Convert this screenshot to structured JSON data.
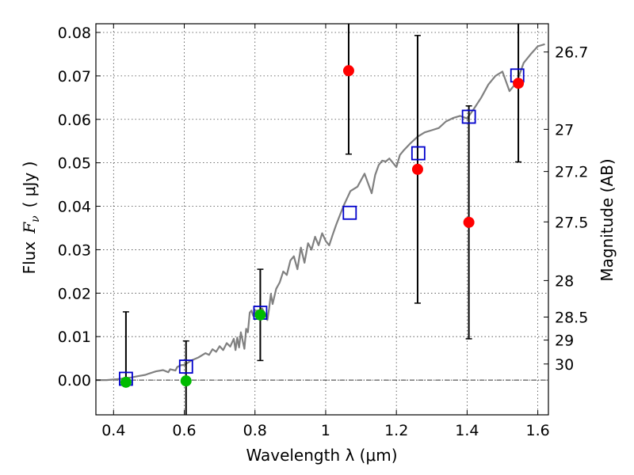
{
  "chart_data": {
    "type": "scatter",
    "xlabel": "Wavelength  λ (μm)",
    "ylabel": "Flux  Fν  ( μJy )",
    "ylabel_parts": {
      "prefix": "Flux",
      "symbol": "F",
      "subscript": "ν",
      "unit": "( μJy )"
    },
    "ylabel_right": "Magnitude (AB)",
    "xlim": [
      0.35,
      1.63
    ],
    "ylim": [
      -0.008,
      0.082
    ],
    "x_ticks": [
      {
        "value": 0.4,
        "label": "0.4"
      },
      {
        "value": 0.6,
        "label": "0.6"
      },
      {
        "value": 0.8,
        "label": "0.8"
      },
      {
        "value": 1.0,
        "label": "1"
      },
      {
        "value": 1.2,
        "label": "1.2"
      },
      {
        "value": 1.4,
        "label": "1.4"
      },
      {
        "value": 1.6,
        "label": "1.6"
      }
    ],
    "y_ticks": [
      {
        "value": 0.0,
        "label": "0.00"
      },
      {
        "value": 0.01,
        "label": "0.01"
      },
      {
        "value": 0.02,
        "label": "0.02"
      },
      {
        "value": 0.03,
        "label": "0.03"
      },
      {
        "value": 0.04,
        "label": "0.04"
      },
      {
        "value": 0.05,
        "label": "0.05"
      },
      {
        "value": 0.06,
        "label": "0.06"
      },
      {
        "value": 0.07,
        "label": "0.07"
      },
      {
        "value": 0.08,
        "label": "0.08"
      }
    ],
    "mag_ticks": [
      {
        "flux": 0.0755,
        "label": "26.7"
      },
      {
        "flux": 0.0577,
        "label": "27"
      },
      {
        "flux": 0.048,
        "label": "27.2"
      },
      {
        "flux": 0.0364,
        "label": "27.5"
      },
      {
        "flux": 0.0229,
        "label": "28"
      },
      {
        "flux": 0.0145,
        "label": "28.5"
      },
      {
        "flux": 0.0092,
        "label": "29"
      },
      {
        "flux": 0.0037,
        "label": "30"
      }
    ],
    "grid": true,
    "zero_line": true,
    "colors": {
      "model": "#808080",
      "detection": "#00bb00",
      "photometry": "#ff0000",
      "model_photometry": "#0000cc",
      "errorbar": "#000000"
    },
    "series": [
      {
        "name": "model spectrum",
        "kind": "line",
        "x": [
          0.35,
          0.38,
          0.41,
          0.43,
          0.45,
          0.47,
          0.49,
          0.5,
          0.52,
          0.54,
          0.555,
          0.56,
          0.575,
          0.58,
          0.59,
          0.6,
          0.62,
          0.64,
          0.66,
          0.67,
          0.68,
          0.69,
          0.7,
          0.71,
          0.72,
          0.73,
          0.74,
          0.745,
          0.75,
          0.755,
          0.76,
          0.77,
          0.775,
          0.78,
          0.785,
          0.79,
          0.795,
          0.8,
          0.81,
          0.82,
          0.83,
          0.835,
          0.84,
          0.845,
          0.85,
          0.86,
          0.87,
          0.88,
          0.89,
          0.9,
          0.91,
          0.92,
          0.93,
          0.94,
          0.95,
          0.96,
          0.97,
          0.98,
          0.99,
          1.0,
          1.01,
          1.02,
          1.03,
          1.05,
          1.07,
          1.09,
          1.11,
          1.13,
          1.14,
          1.15,
          1.16,
          1.17,
          1.18,
          1.2,
          1.21,
          1.22,
          1.24,
          1.26,
          1.28,
          1.3,
          1.32,
          1.34,
          1.36,
          1.38,
          1.4,
          1.42,
          1.44,
          1.46,
          1.48,
          1.5,
          1.52,
          1.54,
          1.56,
          1.58,
          1.6,
          1.62
        ],
        "y": [
          0.0,
          0.0,
          0.0002,
          0.0004,
          0.0006,
          0.0009,
          0.0012,
          0.0015,
          0.002,
          0.0023,
          0.0018,
          0.0025,
          0.0022,
          0.003,
          0.0034,
          0.0035,
          0.0045,
          0.0052,
          0.0062,
          0.0058,
          0.0071,
          0.0065,
          0.0078,
          0.0069,
          0.0085,
          0.0077,
          0.0095,
          0.0069,
          0.0098,
          0.0075,
          0.011,
          0.0072,
          0.0118,
          0.011,
          0.0155,
          0.016,
          0.0148,
          0.016,
          0.016,
          0.0165,
          0.015,
          0.0138,
          0.0165,
          0.0198,
          0.0175,
          0.021,
          0.0225,
          0.025,
          0.0242,
          0.0275,
          0.0285,
          0.0255,
          0.0305,
          0.027,
          0.0315,
          0.03,
          0.033,
          0.031,
          0.0338,
          0.032,
          0.031,
          0.0335,
          0.0358,
          0.04,
          0.0435,
          0.0445,
          0.0475,
          0.043,
          0.0472,
          0.0495,
          0.0505,
          0.0503,
          0.051,
          0.049,
          0.0518,
          0.0528,
          0.0545,
          0.056,
          0.057,
          0.0575,
          0.058,
          0.0595,
          0.0603,
          0.0608,
          0.0602,
          0.0625,
          0.065,
          0.068,
          0.07,
          0.071,
          0.0665,
          0.0685,
          0.073,
          0.075,
          0.0768,
          0.0773
        ]
      },
      {
        "name": "photometry",
        "kind": "circles",
        "points": [
          {
            "x": 0.435,
            "y": -0.0005,
            "err_low": 0.0,
            "err_high": 0.0162,
            "color": "#00bb00"
          },
          {
            "x": 0.605,
            "y": -0.0002,
            "err_low": 0.009,
            "err_high": 0.0092,
            "color": "#00bb00"
          },
          {
            "x": 0.815,
            "y": 0.015,
            "err_low": 0.0105,
            "err_high": 0.0105,
            "color": "#00bb00"
          },
          {
            "x": 1.065,
            "y": 0.0712,
            "err_low": 0.0192,
            "err_high": 0.0192,
            "color": "#ff0000"
          },
          {
            "x": 1.26,
            "y": 0.0485,
            "err_low": 0.0308,
            "err_high": 0.0308,
            "color": "#ff0000"
          },
          {
            "x": 1.405,
            "y": 0.0363,
            "err_low": 0.0268,
            "err_high": 0.0268,
            "color": "#ff0000"
          },
          {
            "x": 1.545,
            "y": 0.0683,
            "err_low": 0.0181,
            "err_high": 0.0181,
            "color": "#ff0000"
          }
        ]
      },
      {
        "name": "model photometry",
        "kind": "squares",
        "points": [
          {
            "x": 0.435,
            "y": 0.0003
          },
          {
            "x": 0.605,
            "y": 0.0031
          },
          {
            "x": 0.815,
            "y": 0.0155
          },
          {
            "x": 1.068,
            "y": 0.0385
          },
          {
            "x": 1.262,
            "y": 0.0522
          },
          {
            "x": 1.405,
            "y": 0.0606
          },
          {
            "x": 1.542,
            "y": 0.0701
          }
        ]
      }
    ]
  }
}
